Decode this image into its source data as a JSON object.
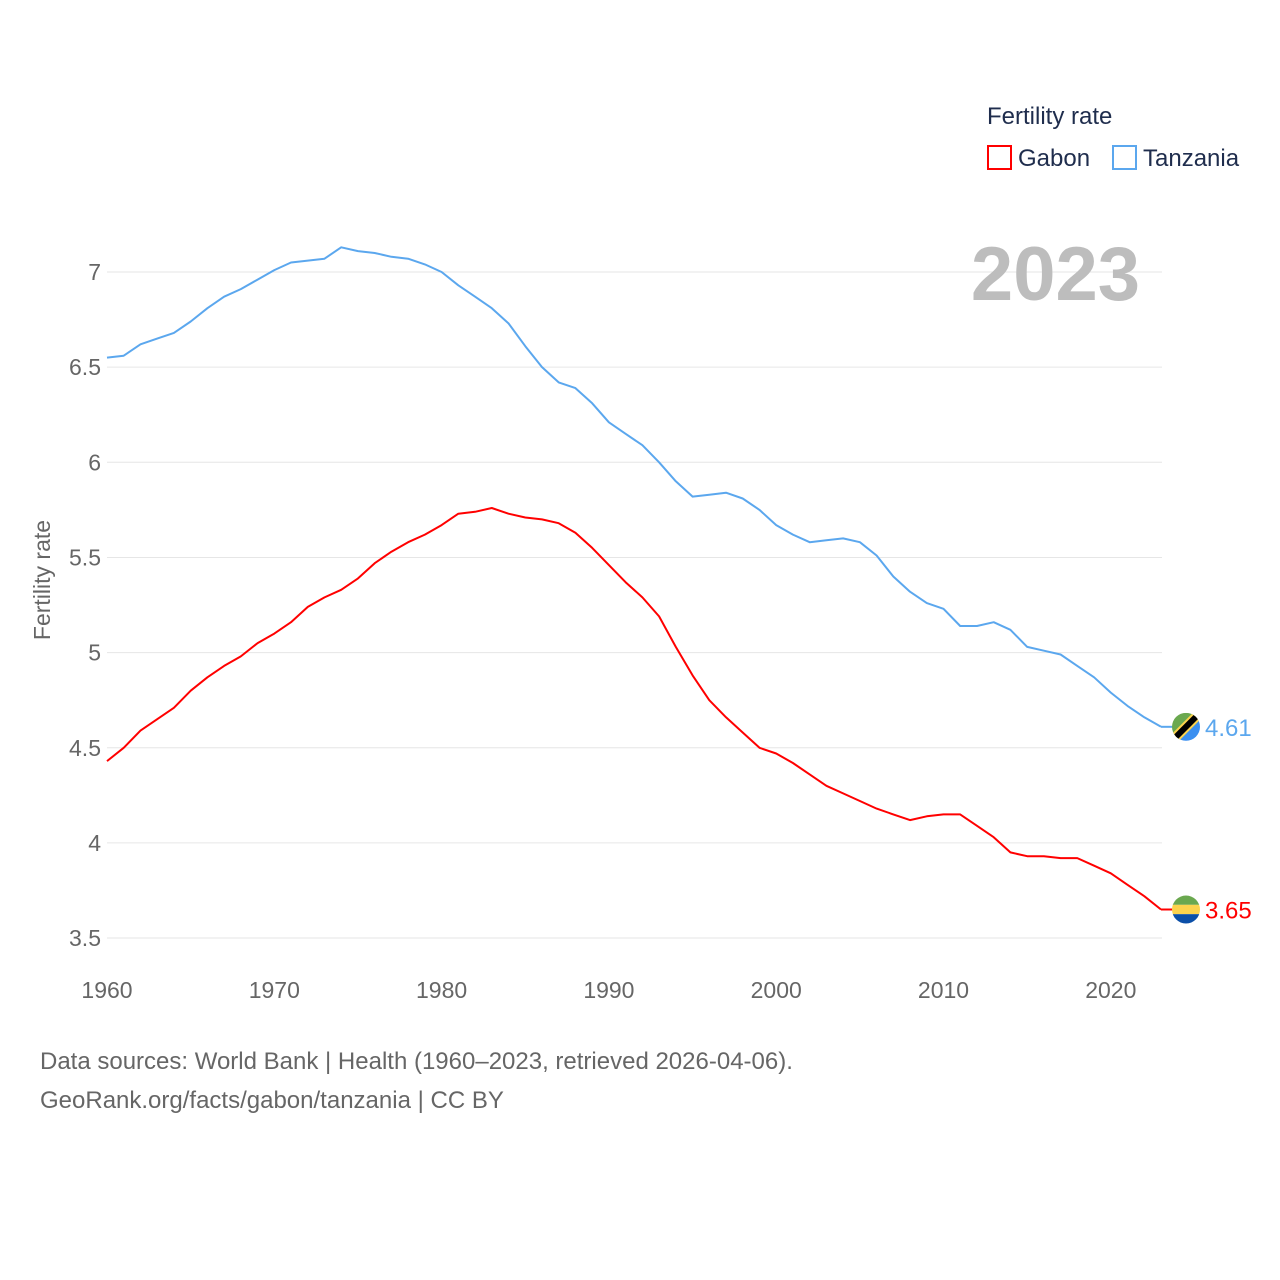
{
  "chart_data": {
    "type": "line",
    "title": "",
    "legend_title": "Fertility rate",
    "legend_position": "top-right",
    "ylabel": "Fertility rate",
    "xlabel": "",
    "year_label": "2023",
    "xlim": [
      1960,
      2023
    ],
    "ylim": [
      3.5,
      7.2
    ],
    "grid": true,
    "x_ticks": [
      "1960",
      "1970",
      "1980",
      "1990",
      "2000",
      "2010",
      "2020"
    ],
    "y_ticks": [
      "3.5",
      "4",
      "4.5",
      "5",
      "5.5",
      "6",
      "6.5",
      "7"
    ],
    "x": [
      1960,
      1961,
      1962,
      1963,
      1964,
      1965,
      1966,
      1967,
      1968,
      1969,
      1970,
      1971,
      1972,
      1973,
      1974,
      1975,
      1976,
      1977,
      1978,
      1979,
      1980,
      1981,
      1982,
      1983,
      1984,
      1985,
      1986,
      1987,
      1988,
      1989,
      1990,
      1991,
      1992,
      1993,
      1994,
      1995,
      1996,
      1997,
      1998,
      1999,
      2000,
      2001,
      2002,
      2003,
      2004,
      2005,
      2006,
      2007,
      2008,
      2009,
      2010,
      2011,
      2012,
      2013,
      2014,
      2015,
      2016,
      2017,
      2018,
      2019,
      2020,
      2021,
      2022,
      2023
    ],
    "series": [
      {
        "name": "Gabon",
        "color": "#ff0000",
        "end_label": "3.65",
        "flag": "gabon-flag",
        "values": [
          4.43,
          4.5,
          4.59,
          4.65,
          4.71,
          4.8,
          4.87,
          4.93,
          4.98,
          5.05,
          5.1,
          5.16,
          5.24,
          5.29,
          5.33,
          5.39,
          5.47,
          5.53,
          5.58,
          5.62,
          5.67,
          5.73,
          5.74,
          5.76,
          5.73,
          5.71,
          5.7,
          5.68,
          5.63,
          5.55,
          5.46,
          5.37,
          5.29,
          5.19,
          5.03,
          4.88,
          4.75,
          4.66,
          4.58,
          4.5,
          4.47,
          4.42,
          4.36,
          4.3,
          4.26,
          4.22,
          4.18,
          4.15,
          4.12,
          4.14,
          4.15,
          4.15,
          4.09,
          4.03,
          3.95,
          3.93,
          3.93,
          3.92,
          3.92,
          3.88,
          3.84,
          3.78,
          3.72,
          3.65
        ]
      },
      {
        "name": "Tanzania",
        "color": "#5ba7ee",
        "end_label": "4.61",
        "flag": "tanzania-flag",
        "values": [
          6.55,
          6.56,
          6.62,
          6.65,
          6.68,
          6.74,
          6.81,
          6.87,
          6.91,
          6.96,
          7.01,
          7.05,
          7.06,
          7.07,
          7.13,
          7.11,
          7.1,
          7.08,
          7.07,
          7.04,
          7.0,
          6.93,
          6.87,
          6.81,
          6.73,
          6.61,
          6.5,
          6.42,
          6.39,
          6.31,
          6.21,
          6.15,
          6.09,
          6.0,
          5.9,
          5.82,
          5.83,
          5.84,
          5.81,
          5.75,
          5.67,
          5.62,
          5.58,
          5.59,
          5.6,
          5.58,
          5.51,
          5.4,
          5.32,
          5.26,
          5.23,
          5.14,
          5.14,
          5.16,
          5.12,
          5.03,
          5.01,
          4.99,
          4.93,
          4.87,
          4.79,
          4.72,
          4.66,
          4.61
        ]
      }
    ]
  },
  "footer": {
    "line1": "Data sources: World Bank | Health (1960–2023, retrieved 2026-04-06).",
    "line2": "GeoRank.org/facts/gabon/tanzania | CC BY"
  }
}
